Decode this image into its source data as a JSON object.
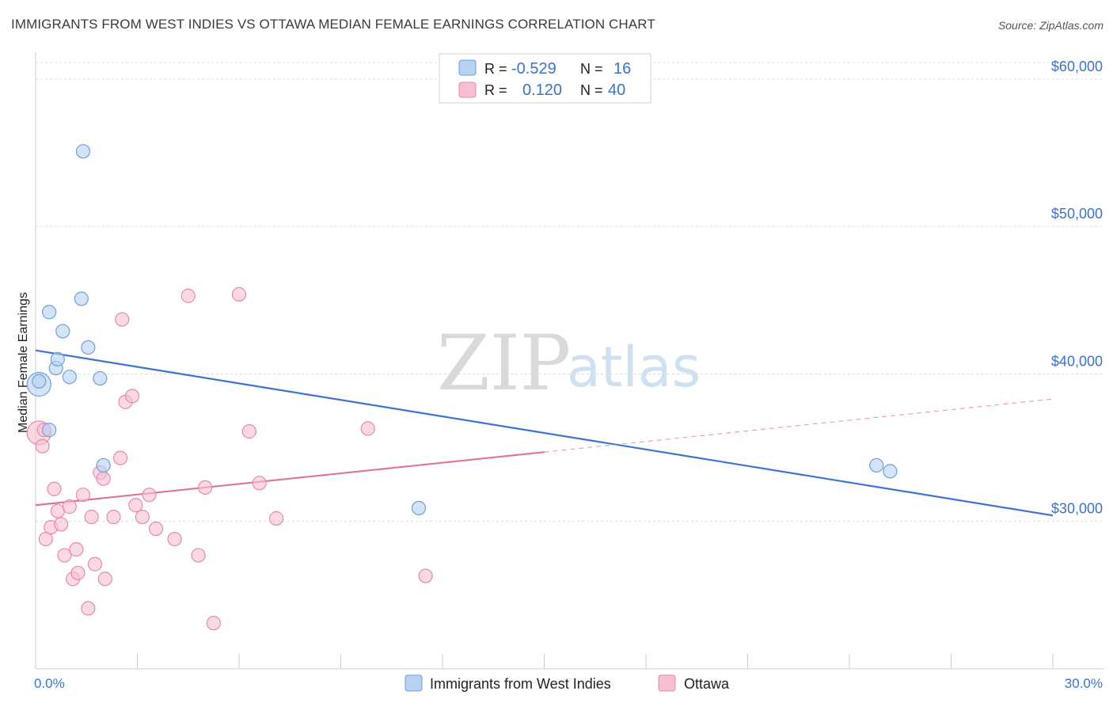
{
  "title": "IMMIGRANTS FROM WEST INDIES VS OTTAWA MEDIAN FEMALE EARNINGS CORRELATION CHART",
  "source": "Source: ZipAtlas.com",
  "colors": {
    "blue": "#3a75d1",
    "blue_fill": "#b8d2f0",
    "pink": "#e0739a",
    "pink_fill": "#f7c0d0",
    "axis_label": "#3d72c8",
    "grid": "#dcdcdc"
  },
  "legend": {
    "rows": [
      {
        "r_label": "R =",
        "r_value": "-0.529",
        "n_label": "N =",
        "n_value": "16",
        "series": "blue"
      },
      {
        "r_label": "R =",
        "r_value": "0.120",
        "n_label": "N =",
        "n_value": "40",
        "series": "pink"
      }
    ]
  },
  "bottom_legend": [
    {
      "label": "Immigrants from West Indies",
      "series": "blue"
    },
    {
      "label": "Ottawa",
      "series": "pink"
    }
  ],
  "watermark": {
    "zip": "ZIP",
    "atlas": "atlas"
  },
  "chart_data": {
    "type": "scatter",
    "title": "IMMIGRANTS FROM WEST INDIES VS OTTAWA MEDIAN FEMALE EARNINGS CORRELATION CHART",
    "xlabel": "",
    "ylabel": "Median Female Earnings",
    "xlim": [
      0,
      30
    ],
    "ylim": [
      20000,
      61500
    ],
    "x_tick_labels": [
      "0.0%",
      "30.0%"
    ],
    "y_ticks": [
      30000,
      40000,
      50000,
      60000
    ],
    "y_tick_labels": [
      "$30,000",
      "$40,000",
      "$50,000",
      "$60,000"
    ],
    "grid": true,
    "series": [
      {
        "name": "Immigrants from West Indies",
        "color": "blue",
        "points": [
          [
            0.1,
            39300,
            2
          ],
          [
            0.1,
            39500,
            1
          ],
          [
            0.4,
            36200,
            1
          ],
          [
            0.4,
            44200,
            1
          ],
          [
            0.6,
            40400,
            1
          ],
          [
            0.65,
            41000,
            1
          ],
          [
            0.8,
            42900,
            1
          ],
          [
            1.0,
            39800,
            1
          ],
          [
            1.35,
            45100,
            1
          ],
          [
            1.4,
            55100,
            1
          ],
          [
            1.55,
            41800,
            1
          ],
          [
            1.9,
            39700,
            1
          ],
          [
            2.0,
            33800,
            1
          ],
          [
            11.3,
            30900,
            1
          ],
          [
            24.8,
            33800,
            1
          ],
          [
            25.2,
            33400,
            1
          ]
        ],
        "trend": {
          "x": [
            0,
            30
          ],
          "y": [
            41600,
            30400
          ],
          "dashed_from": null
        }
      },
      {
        "name": "Ottawa",
        "color": "pink",
        "points": [
          [
            0.1,
            36000,
            2
          ],
          [
            0.2,
            35100,
            1
          ],
          [
            0.3,
            28800,
            1
          ],
          [
            0.45,
            29600,
            1
          ],
          [
            0.55,
            32200,
            1
          ],
          [
            0.65,
            30700,
            1
          ],
          [
            0.75,
            29800,
            1
          ],
          [
            0.85,
            27700,
            1
          ],
          [
            1.0,
            31000,
            1
          ],
          [
            1.1,
            26100,
            1
          ],
          [
            1.2,
            28100,
            1
          ],
          [
            1.25,
            26500,
            1
          ],
          [
            1.4,
            31800,
            1
          ],
          [
            1.55,
            24100,
            1
          ],
          [
            1.65,
            30300,
            1
          ],
          [
            1.75,
            27100,
            1
          ],
          [
            1.9,
            33300,
            1
          ],
          [
            2.0,
            32900,
            1
          ],
          [
            2.05,
            26100,
            1
          ],
          [
            2.3,
            30300,
            1
          ],
          [
            2.5,
            34300,
            1
          ],
          [
            2.55,
            43700,
            1
          ],
          [
            2.65,
            38100,
            1
          ],
          [
            2.85,
            38500,
            1
          ],
          [
            2.95,
            31100,
            1
          ],
          [
            3.15,
            30300,
            1
          ],
          [
            3.35,
            31800,
            1
          ],
          [
            3.55,
            29500,
            1
          ],
          [
            4.1,
            28800,
            1
          ],
          [
            4.5,
            45300,
            1
          ],
          [
            4.8,
            27700,
            1
          ],
          [
            5.0,
            32300,
            1
          ],
          [
            5.25,
            23100,
            1
          ],
          [
            6.0,
            45400,
            1
          ],
          [
            6.3,
            36100,
            1
          ],
          [
            6.6,
            32600,
            1
          ],
          [
            7.1,
            30200,
            1
          ],
          [
            9.8,
            36300,
            1
          ],
          [
            11.5,
            26300,
            1
          ],
          [
            0.25,
            36200,
            1
          ]
        ],
        "trend": {
          "x": [
            0,
            30
          ],
          "y": [
            31100,
            38300
          ],
          "dashed_from": 15
        }
      }
    ]
  }
}
